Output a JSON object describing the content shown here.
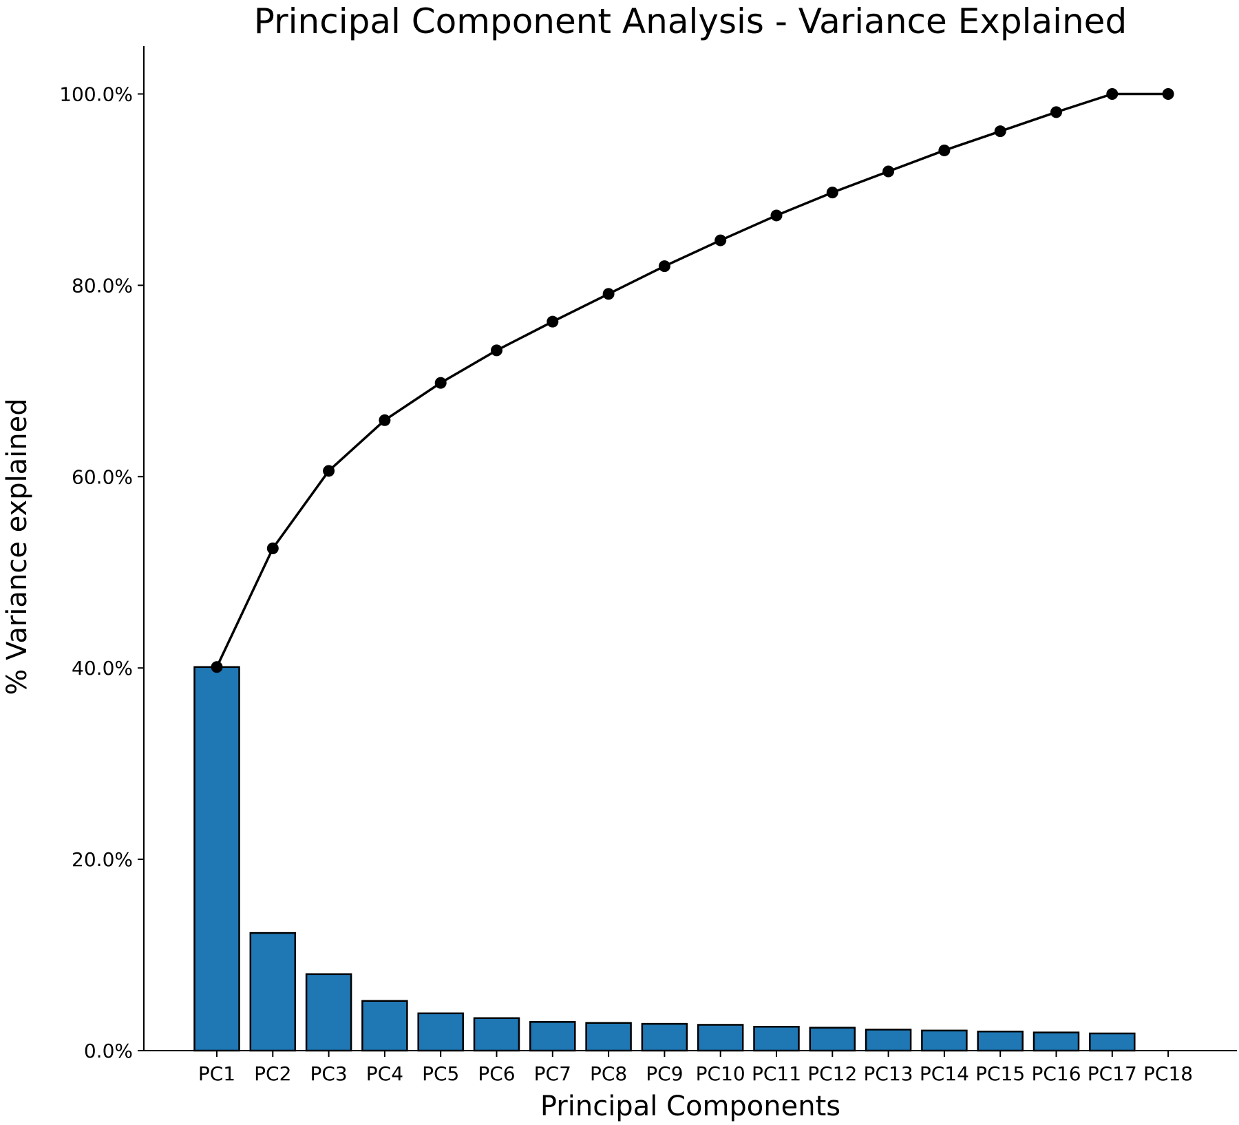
{
  "chart_data": {
    "type": "bar",
    "title": "Principal Component Analysis - Variance Explained",
    "xlabel": "Principal Components",
    "ylabel": "% Variance explained",
    "categories": [
      "PC1",
      "PC2",
      "PC3",
      "PC4",
      "PC5",
      "PC6",
      "PC7",
      "PC8",
      "PC9",
      "PC10",
      "PC11",
      "PC12",
      "PC13",
      "PC14",
      "PC15",
      "PC16",
      "PC17",
      "PC18"
    ],
    "ylim": [
      0,
      105
    ],
    "yticks": [
      {
        "value": 0,
        "label": "0.0%"
      },
      {
        "value": 20,
        "label": "20.0%"
      },
      {
        "value": 40,
        "label": "40.0%"
      },
      {
        "value": 60,
        "label": "60.0%"
      },
      {
        "value": 80,
        "label": "80.0%"
      },
      {
        "value": 100,
        "label": "100.0%"
      }
    ],
    "grid": false,
    "series": [
      {
        "type": "bar",
        "color": "#1f77b4",
        "values": [
          40.1,
          12.3,
          8.0,
          5.2,
          3.9,
          3.4,
          3.0,
          2.9,
          2.8,
          2.7,
          2.5,
          2.4,
          2.2,
          2.1,
          2.0,
          1.9,
          1.8,
          0.0
        ]
      },
      {
        "type": "line",
        "color": "#000000",
        "marker": "circle",
        "values": [
          40.1,
          52.5,
          60.6,
          65.9,
          69.8,
          73.2,
          76.2,
          79.1,
          82.0,
          84.7,
          87.3,
          89.7,
          91.9,
          94.1,
          96.1,
          98.1,
          100.0,
          100.0
        ]
      }
    ]
  }
}
